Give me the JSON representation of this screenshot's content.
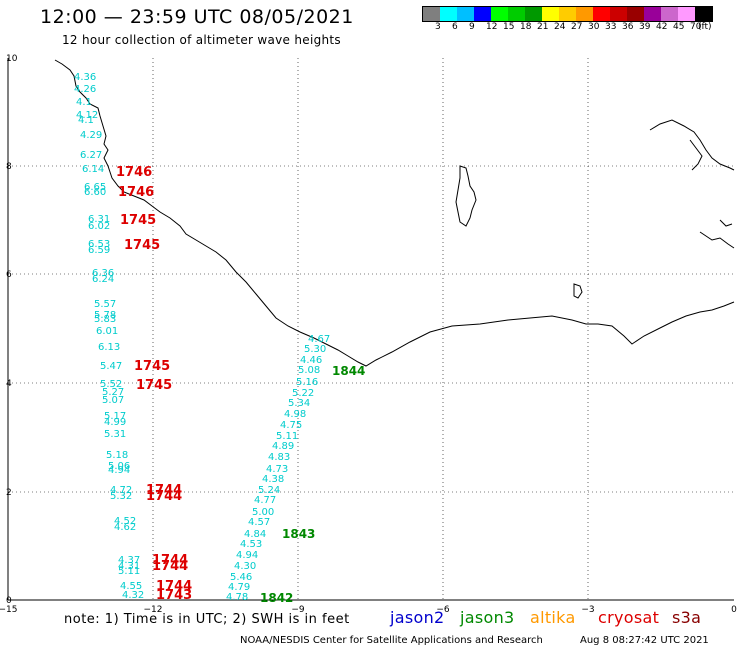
{
  "header": {
    "title": "12:00 — 23:59 UTC 08/05/2021",
    "subtitle": "12 hour collection of altimeter wave heights"
  },
  "scale": {
    "unit": "(ft)",
    "colors": [
      "#7f7f7f",
      "#00ffff",
      "#00bfff",
      "#0000ff",
      "#00ff00",
      "#00cc00",
      "#009900",
      "#ffff00",
      "#ffcc00",
      "#ff9900",
      "#ff0000",
      "#cc0000",
      "#990000",
      "#990099",
      "#cc66cc",
      "#ff99ff",
      "#000000"
    ],
    "labels": [
      "3",
      "6",
      "9",
      "12",
      "15",
      "18",
      "21",
      "24",
      "27",
      "30",
      "33",
      "36",
      "39",
      "42",
      "45",
      "70"
    ]
  },
  "axes": {
    "y_ticks": [
      "10",
      "8",
      "6",
      "4",
      "2",
      "0"
    ],
    "x_ticks": [
      "−15",
      "−12",
      "−9",
      "−6",
      "−3",
      "0"
    ]
  },
  "observations": {
    "west_track": [
      "4.36",
      "4.26",
      "4.1",
      "4.12",
      "4.1",
      "4.29",
      "6.27",
      "6.14",
      "6.65",
      "6.60",
      "6.31",
      "6.02",
      "6.53",
      "6.59",
      "6.36",
      "6.24",
      "5.57",
      "5.78",
      "5.83",
      "6.01",
      "6.13",
      "5.47",
      "5.52",
      "5.27",
      "5.07",
      "5.17",
      "4.99",
      "5.31",
      "5.18",
      "5.06",
      "4.94",
      "4.72",
      "5.32",
      "4.52",
      "4.62",
      "4.37",
      "4.31",
      "5.11",
      "4.55",
      "4.32"
    ],
    "east_track": [
      "4.67",
      "5.30",
      "4.46",
      "5.08",
      "5.16",
      "5.22",
      "5.34",
      "4.98",
      "4.75",
      "5.11",
      "4.89",
      "4.83",
      "4.73",
      "4.38",
      "5.24",
      "4.77",
      "5.00",
      "4.57",
      "4.84",
      "4.53",
      "4.94",
      "4.30",
      "5.46",
      "4.79",
      "4.78"
    ],
    "cryosat_times": [
      "1746",
      "1746",
      "1745",
      "1745",
      "1745",
      "1745",
      "1744",
      "1744",
      "1744",
      "1744",
      "1744",
      "1743"
    ],
    "jason3_times": [
      "1844",
      "1843",
      "1842"
    ]
  },
  "footer": {
    "note": "note:  1) Time is in UTC;  2) SWH is in feet",
    "satellites": [
      {
        "name": "jason2",
        "color": "#0000cc"
      },
      {
        "name": "jason3",
        "color": "#008800"
      },
      {
        "name": "altika",
        "color": "#ff9900"
      },
      {
        "name": "cryosat",
        "color": "#dd0000"
      },
      {
        "name": "s3a",
        "color": "#880000"
      }
    ],
    "credit": "NOAA/NESDIS Center for Satellite Applications and Research",
    "timestamp": "Aug  8 08:27:42 UTC 2021"
  }
}
